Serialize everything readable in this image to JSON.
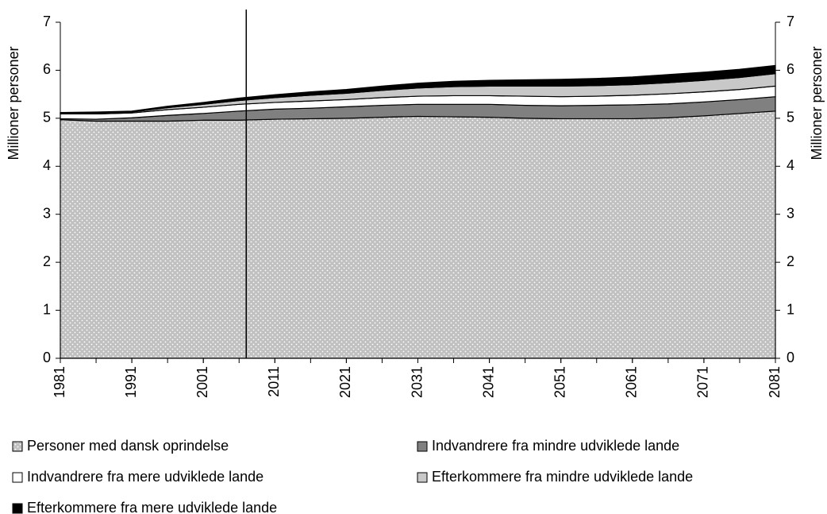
{
  "chart_data": {
    "type": "stacked_area",
    "y_label": "Millioner personer",
    "y2_label": "Millioner personer",
    "x": [
      1981,
      1986,
      1991,
      1996,
      2001,
      2006,
      2011,
      2016,
      2021,
      2026,
      2031,
      2036,
      2041,
      2046,
      2051,
      2056,
      2061,
      2066,
      2071,
      2076,
      2081
    ],
    "xlim": [
      1981,
      2081
    ],
    "xticks": [
      1981,
      1991,
      2001,
      2011,
      2021,
      2031,
      2041,
      2051,
      2061,
      2071,
      2081
    ],
    "ylim": [
      0,
      7
    ],
    "yticks": [
      0,
      1,
      2,
      3,
      4,
      5,
      6,
      7
    ],
    "y2lim": [
      0,
      7
    ],
    "y2ticks": [
      0,
      1,
      2,
      3,
      4,
      5,
      6,
      7
    ],
    "marker_x": 2007,
    "series": [
      {
        "name": "Personer med dansk oprindelse",
        "color": "#c0c0c0",
        "values": [
          4.97,
          4.94,
          4.94,
          4.94,
          4.96,
          4.96,
          4.98,
          4.99,
          5.0,
          5.02,
          5.04,
          5.03,
          5.02,
          5.0,
          4.99,
          4.99,
          4.99,
          5.01,
          5.05,
          5.1,
          5.15
        ]
      },
      {
        "name": "Indvandrere fra mindre udviklede lande",
        "color": "#808080",
        "values": [
          0.02,
          0.04,
          0.07,
          0.12,
          0.14,
          0.19,
          0.21,
          0.22,
          0.24,
          0.25,
          0.25,
          0.26,
          0.27,
          0.27,
          0.27,
          0.28,
          0.29,
          0.29,
          0.29,
          0.29,
          0.3
        ]
      },
      {
        "name": "Indvandrere fra mere udviklede lande",
        "color": "#ffffff",
        "values": [
          0.1,
          0.11,
          0.1,
          0.12,
          0.13,
          0.14,
          0.14,
          0.15,
          0.15,
          0.16,
          0.17,
          0.18,
          0.18,
          0.19,
          0.19,
          0.19,
          0.2,
          0.21,
          0.21,
          0.21,
          0.22
        ]
      },
      {
        "name": "Efterkommere fra mindre udviklede lande",
        "color": "#c8c8c8",
        "values": [
          0.02,
          0.02,
          0.02,
          0.04,
          0.06,
          0.08,
          0.1,
          0.12,
          0.13,
          0.15,
          0.17,
          0.19,
          0.2,
          0.21,
          0.22,
          0.22,
          0.22,
          0.23,
          0.24,
          0.25,
          0.26
        ]
      },
      {
        "name": "Efterkommere fra mere udviklede lande",
        "color": "#000000",
        "values": [
          0.01,
          0.02,
          0.02,
          0.03,
          0.04,
          0.05,
          0.06,
          0.07,
          0.08,
          0.09,
          0.1,
          0.11,
          0.12,
          0.13,
          0.14,
          0.15,
          0.16,
          0.17,
          0.17,
          0.17,
          0.17
        ]
      }
    ]
  }
}
